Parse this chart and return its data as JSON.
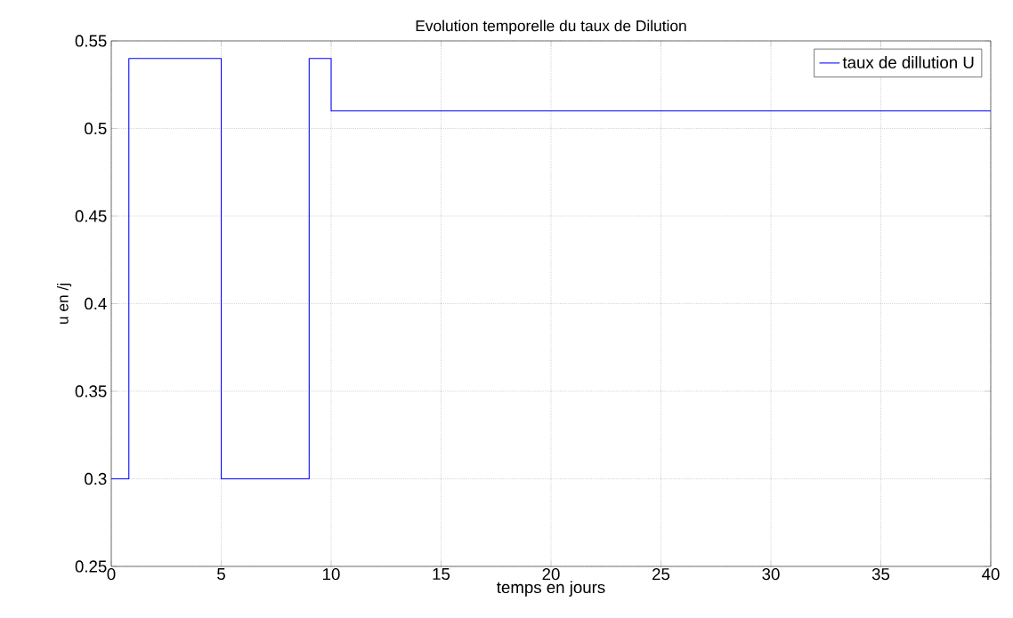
{
  "chart_data": {
    "type": "step",
    "title": "Evolution temporelle du taux de Dilution",
    "xlabel": "temps en jours",
    "ylabel": "u en /j",
    "x": [
      0,
      0.8,
      5,
      9,
      10,
      40
    ],
    "series": [
      {
        "name": "taux de dillution U",
        "color": "#0000ff",
        "values": [
          0.3,
          0.54,
          0.3,
          0.54,
          0.51,
          0.51
        ]
      }
    ],
    "xlim": [
      0,
      40
    ],
    "ylim": [
      0.25,
      0.55
    ],
    "xticks": [
      0,
      5,
      10,
      15,
      20,
      25,
      30,
      35,
      40
    ],
    "yticks": [
      0.25,
      0.3,
      0.35,
      0.4,
      0.45,
      0.5,
      0.55
    ],
    "grid": true,
    "legend": "top right",
    "line_style": "solid",
    "marker": "none"
  }
}
